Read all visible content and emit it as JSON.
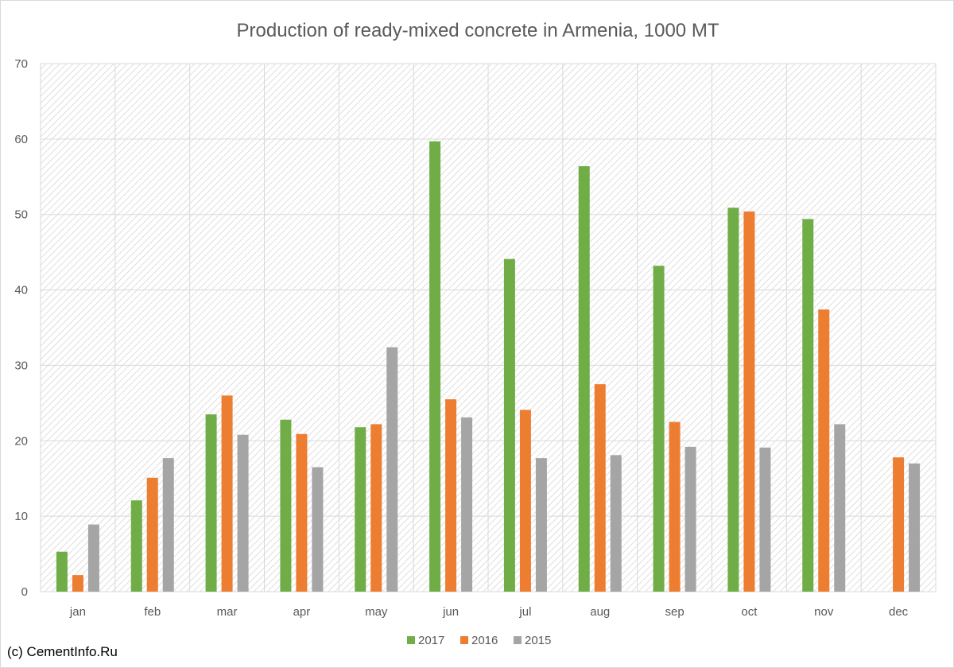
{
  "chart_data": {
    "type": "bar",
    "title": "Production of ready-mixed concrete in Armenia, 1000 MT",
    "xlabel": "",
    "ylabel": "",
    "categories": [
      "jan",
      "feb",
      "mar",
      "apr",
      "may",
      "jun",
      "jul",
      "aug",
      "sep",
      "oct",
      "nov",
      "dec"
    ],
    "series": [
      {
        "name": "2017",
        "color": "#70ad47",
        "values": [
          5.3,
          12.1,
          23.5,
          22.8,
          21.8,
          59.7,
          44.1,
          56.4,
          43.2,
          50.9,
          49.4,
          null
        ]
      },
      {
        "name": "2016",
        "color": "#ed7d31",
        "values": [
          2.2,
          15.1,
          26.0,
          20.9,
          22.2,
          25.5,
          24.1,
          27.5,
          22.5,
          50.4,
          37.4,
          17.8
        ]
      },
      {
        "name": "2015",
        "color": "#a5a5a5",
        "values": [
          8.9,
          17.7,
          20.8,
          16.5,
          32.4,
          23.1,
          17.7,
          18.1,
          19.2,
          19.1,
          22.2,
          17.0
        ]
      }
    ],
    "ylim": [
      0,
      70
    ],
    "yticks": [
      0,
      10,
      20,
      30,
      40,
      50,
      60,
      70
    ],
    "grid": true,
    "legend_position": "bottom"
  },
  "credit": "(c) CementInfo.Ru"
}
